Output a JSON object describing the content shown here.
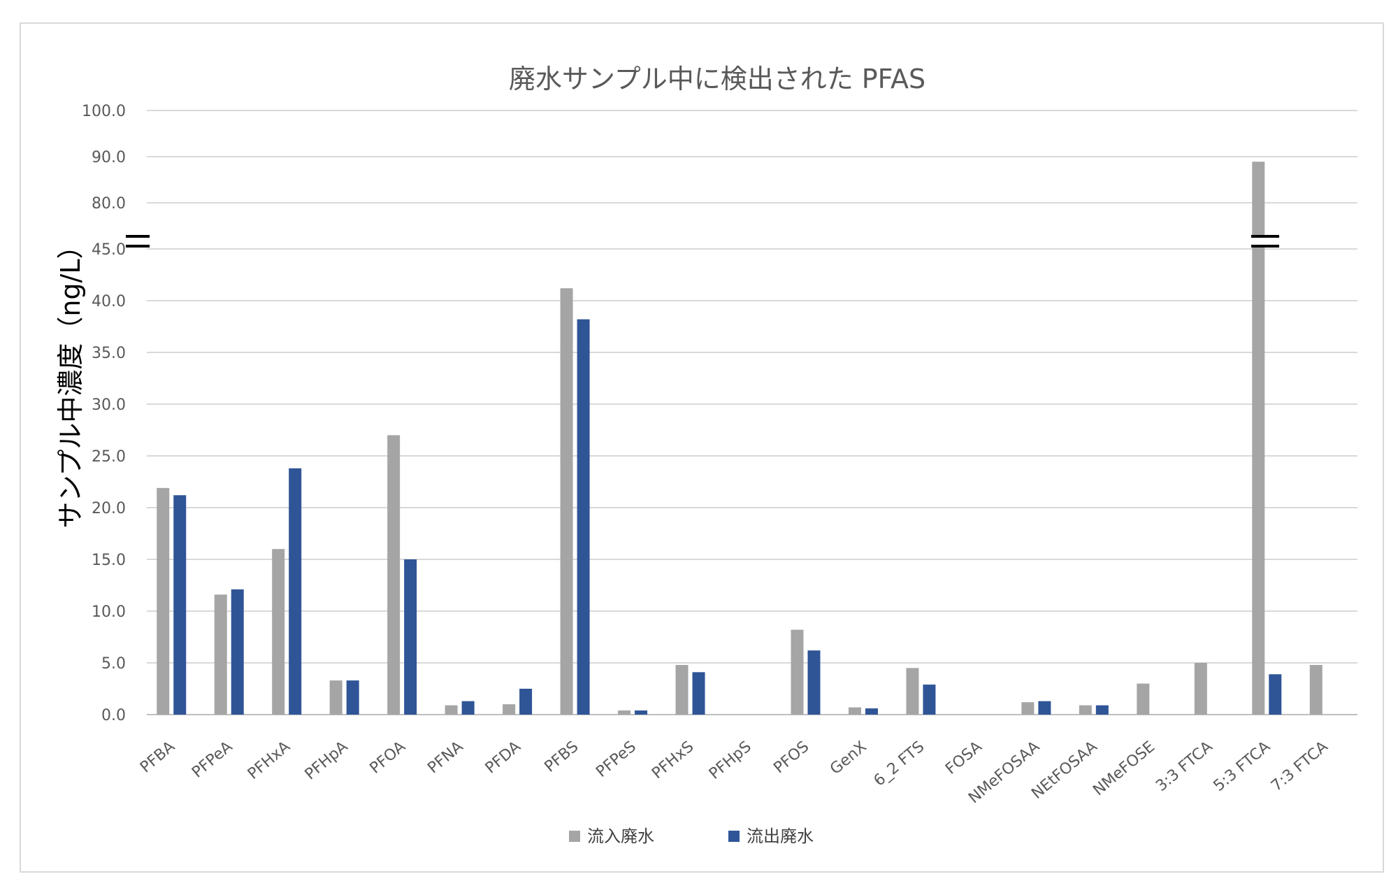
{
  "chart_data": {
    "type": "bar",
    "title": "廃水サンプル中に検出された PFAS",
    "xlabel": "",
    "ylabel": "サンプル中濃度（ng/L）",
    "y_ticks": [
      "0.0",
      "5.0",
      "10.0",
      "15.0",
      "20.0",
      "25.0",
      "30.0",
      "35.0",
      "40.0",
      "45.0",
      "80.0",
      "90.0",
      "100.0"
    ],
    "ylim": [
      0,
      100
    ],
    "axis_break": {
      "lower": 45,
      "upper": 80
    },
    "grid": true,
    "legend_position": "bottom",
    "categories": [
      "PFBA",
      "PFPeA",
      "PFHxA",
      "PFHpA",
      "PFOA",
      "PFNA",
      "PFDA",
      "PFBS",
      "PFPeS",
      "PFHxS",
      "PFHpS",
      "PFOS",
      "GenX",
      "6_2 FTS",
      "FOSA",
      "NMeFOSAA",
      "NEtFOSAA",
      "NMeFOSE",
      "3:3 FTCA",
      "5:3 FTCA",
      "7:3 FTCA"
    ],
    "series": [
      {
        "name": "流入廃水",
        "color": "#a5a5a5",
        "values": [
          21.9,
          11.6,
          16.0,
          3.3,
          27.0,
          0.9,
          1.0,
          41.2,
          0.4,
          4.8,
          0,
          8.2,
          0.7,
          4.5,
          0,
          1.2,
          0.9,
          3.0,
          5.0,
          88.9,
          4.8
        ]
      },
      {
        "name": "流出廃水",
        "color": "#2f5597",
        "values": [
          21.2,
          12.1,
          23.8,
          3.3,
          15.0,
          1.3,
          2.5,
          38.2,
          0.4,
          4.1,
          0,
          6.2,
          0.6,
          2.9,
          0,
          1.3,
          0.9,
          0,
          0,
          3.9,
          0
        ]
      }
    ]
  }
}
